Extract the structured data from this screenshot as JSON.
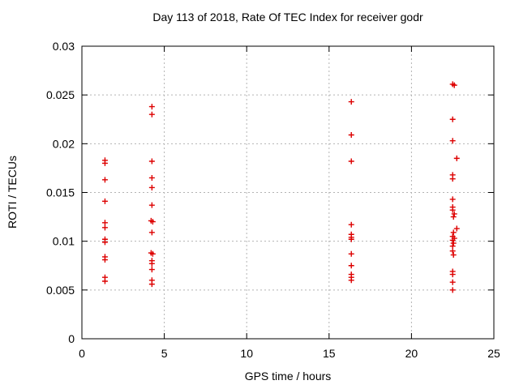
{
  "chart_data": {
    "type": "scatter",
    "title": "Day 113 of 2018, Rate Of TEC Index for receiver godr",
    "xlabel": "GPS time / hours",
    "ylabel": "ROTI / TECUs",
    "xlim": [
      0,
      25
    ],
    "ylim": [
      0,
      0.03
    ],
    "xticks": [
      0,
      5,
      10,
      15,
      20,
      25
    ],
    "xtick_labels": [
      "0",
      "5",
      "10",
      "15",
      "20",
      "25"
    ],
    "yticks": [
      0,
      0.005,
      0.01,
      0.015,
      0.02,
      0.025,
      0.03
    ],
    "ytick_labels": [
      "0",
      "0.005",
      "0.01",
      "0.015",
      "0.02",
      "0.025",
      "0.03"
    ],
    "grid": true,
    "legend": "none",
    "marker": "plus",
    "marker_color": "#dd0000",
    "grid_color": "#b3b3b3",
    "border_color": "#000000",
    "series": [
      {
        "name": "ROTI",
        "points": [
          [
            1.4,
            0.0183
          ],
          [
            1.4,
            0.018
          ],
          [
            1.4,
            0.0163
          ],
          [
            1.4,
            0.0141
          ],
          [
            1.4,
            0.0119
          ],
          [
            1.4,
            0.0114
          ],
          [
            1.4,
            0.0102
          ],
          [
            1.4,
            0.0099
          ],
          [
            1.4,
            0.0084
          ],
          [
            1.4,
            0.0081
          ],
          [
            1.4,
            0.0063
          ],
          [
            1.4,
            0.0059
          ],
          [
            4.25,
            0.0238
          ],
          [
            4.25,
            0.023
          ],
          [
            4.25,
            0.0182
          ],
          [
            4.25,
            0.0165
          ],
          [
            4.25,
            0.0155
          ],
          [
            4.25,
            0.0137
          ],
          [
            4.2,
            0.0121
          ],
          [
            4.3,
            0.012
          ],
          [
            4.25,
            0.0109
          ],
          [
            4.2,
            0.0088
          ],
          [
            4.3,
            0.0087
          ],
          [
            4.25,
            0.008
          ],
          [
            4.25,
            0.0077
          ],
          [
            4.25,
            0.0071
          ],
          [
            4.25,
            0.006
          ],
          [
            4.25,
            0.0056
          ],
          [
            16.35,
            0.0243
          ],
          [
            16.35,
            0.0209
          ],
          [
            16.35,
            0.0182
          ],
          [
            16.35,
            0.0117
          ],
          [
            16.35,
            0.0107
          ],
          [
            16.35,
            0.0104
          ],
          [
            16.35,
            0.0102
          ],
          [
            16.35,
            0.0087
          ],
          [
            16.35,
            0.0075
          ],
          [
            16.35,
            0.0066
          ],
          [
            16.35,
            0.0063
          ],
          [
            16.35,
            0.006
          ],
          [
            22.5,
            0.0261
          ],
          [
            22.6,
            0.026
          ],
          [
            22.5,
            0.0225
          ],
          [
            22.5,
            0.0203
          ],
          [
            22.75,
            0.0185
          ],
          [
            22.5,
            0.0168
          ],
          [
            22.5,
            0.0164
          ],
          [
            22.5,
            0.0143
          ],
          [
            22.5,
            0.0135
          ],
          [
            22.5,
            0.0132
          ],
          [
            22.6,
            0.0128
          ],
          [
            22.55,
            0.0125
          ],
          [
            22.75,
            0.0113
          ],
          [
            22.55,
            0.0109
          ],
          [
            22.5,
            0.0105
          ],
          [
            22.6,
            0.0103
          ],
          [
            22.5,
            0.0101
          ],
          [
            22.55,
            0.0098
          ],
          [
            22.5,
            0.0095
          ],
          [
            22.5,
            0.009
          ],
          [
            22.55,
            0.0086
          ],
          [
            22.5,
            0.0069
          ],
          [
            22.5,
            0.0066
          ],
          [
            22.5,
            0.0058
          ],
          [
            22.5,
            0.005
          ]
        ]
      }
    ]
  }
}
